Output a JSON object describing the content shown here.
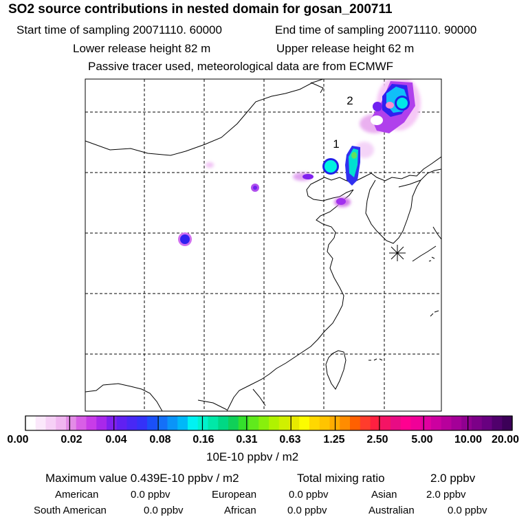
{
  "header": {
    "title": "SO2 source contributions in nested domain for gosan_200711",
    "start_time": "Start time of sampling 20071110. 60000",
    "end_time": "End time of sampling 20071110. 90000",
    "lower_release": "Lower release height   82 m",
    "upper_release": "Upper release height   62 m",
    "note": "Passive tracer used, meteorological data are from ECMWF"
  },
  "map": {
    "source_labels": [
      "1",
      "2"
    ],
    "receptor_marker": "asterisk-icon"
  },
  "colorbar": {
    "ticks": [
      "0.00",
      "0.02",
      "0.04",
      "0.08",
      "0.16",
      "0.31",
      "0.63",
      "1.25",
      "2.50",
      "5.00",
      "10.00",
      "20.00"
    ],
    "colors": [
      "#ffffff",
      "#fbe8fb",
      "#f6d0f6",
      "#f0b6f0",
      "#e38ce6",
      "#d85fe6",
      "#c83ce8",
      "#a928ea",
      "#8020ee",
      "#6020f2",
      "#4828f5",
      "#3432f8",
      "#1a50f8",
      "#1470f8",
      "#0a94f8",
      "#00b8f8",
      "#00f2f2",
      "#00f2cc",
      "#00e8a8",
      "#00d884",
      "#10d058",
      "#34e02c",
      "#60ea1c",
      "#88f00c",
      "#b0f200",
      "#d0f000",
      "#e8ea00",
      "#fcfc00",
      "#ffd800",
      "#ffc400",
      "#ffac00",
      "#ff8c00",
      "#ff6000",
      "#ff3c2c",
      "#ff2040",
      "#f41464",
      "#e80c84",
      "#ff0090",
      "#f00098",
      "#e000a0",
      "#cc00a0",
      "#b8009c",
      "#a40098",
      "#900090",
      "#7c0088",
      "#680080",
      "#50006c",
      "#3c0058"
    ],
    "unit": "10E-10 ppbv / m2"
  },
  "summary": {
    "max_value": "Maximum value  0.439E-10 ppbv / m2",
    "total_label": "Total mixing ratio",
    "total_value": "2.0 ppbv",
    "regions": [
      {
        "name": "American",
        "value": "0.0 ppbv"
      },
      {
        "name": "European",
        "value": "0.0 ppbv"
      },
      {
        "name": "Asian",
        "value": "2.0 ppbv"
      },
      {
        "name": "South American",
        "value": "0.0 ppbv"
      },
      {
        "name": "African",
        "value": "0.0 ppbv"
      },
      {
        "name": "Australian",
        "value": "0.0 ppbv"
      }
    ]
  }
}
